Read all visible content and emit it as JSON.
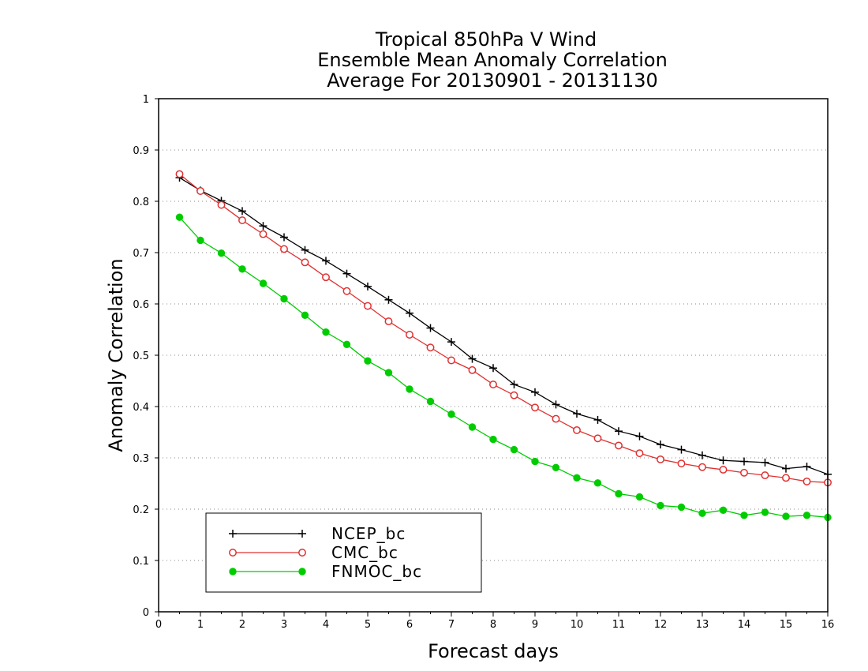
{
  "chart_data": {
    "type": "line",
    "title": [
      "Tropical 850hPa V Wind",
      "Ensemble Mean Anomaly Correlation",
      "Average For 20130901 - 20131130"
    ],
    "xlabel": "Forecast days",
    "ylabel": "Anomaly Correlation",
    "xlim": [
      0,
      16
    ],
    "ylim": [
      0,
      1
    ],
    "xticks": [
      "0",
      "1",
      "2",
      "3",
      "4",
      "5",
      "6",
      "7",
      "8",
      "9",
      "10",
      "11",
      "12",
      "13",
      "14",
      "15",
      "16"
    ],
    "yticks": [
      "0",
      "0.1",
      "0.2",
      "0.3",
      "0.4",
      "0.5",
      "0.6",
      "0.7",
      "0.8",
      "0.9",
      "1"
    ],
    "grid": "dotted horizontal",
    "legend_position": "bottom-left",
    "x": [
      0.5,
      1,
      1.5,
      2,
      2.5,
      3,
      3.5,
      4,
      4.5,
      5,
      5.5,
      6,
      6.5,
      7,
      7.5,
      8,
      8.5,
      9,
      9.5,
      10,
      10.5,
      11,
      11.5,
      12,
      12.5,
      13,
      13.5,
      14,
      14.5,
      15,
      15.5,
      16
    ],
    "series": [
      {
        "name": "NCEP_bc",
        "color": "#000000",
        "marker": "plus",
        "values": [
          0.846,
          0.821,
          0.801,
          0.781,
          0.752,
          0.73,
          0.705,
          0.684,
          0.659,
          0.634,
          0.608,
          0.582,
          0.553,
          0.526,
          0.493,
          0.475,
          0.443,
          0.428,
          0.404,
          0.386,
          0.374,
          0.352,
          0.342,
          0.326,
          0.316,
          0.305,
          0.295,
          0.293,
          0.291,
          0.279,
          0.283,
          0.268
        ]
      },
      {
        "name": "CMC_bc",
        "color": "#e03030",
        "marker": "open-circle",
        "values": [
          0.853,
          0.82,
          0.793,
          0.763,
          0.736,
          0.707,
          0.681,
          0.652,
          0.625,
          0.596,
          0.566,
          0.54,
          0.515,
          0.49,
          0.471,
          0.443,
          0.422,
          0.398,
          0.376,
          0.354,
          0.338,
          0.324,
          0.309,
          0.297,
          0.289,
          0.282,
          0.277,
          0.271,
          0.266,
          0.261,
          0.254,
          0.252
        ]
      },
      {
        "name": "FNMOC_bc",
        "color": "#00cc00",
        "marker": "filled-circle",
        "values": [
          0.769,
          0.724,
          0.699,
          0.668,
          0.64,
          0.61,
          0.578,
          0.545,
          0.521,
          0.489,
          0.466,
          0.434,
          0.41,
          0.385,
          0.36,
          0.336,
          0.316,
          0.293,
          0.281,
          0.261,
          0.251,
          0.23,
          0.224,
          0.207,
          0.204,
          0.192,
          0.198,
          0.188,
          0.194,
          0.186,
          0.188,
          0.184
        ]
      }
    ]
  }
}
